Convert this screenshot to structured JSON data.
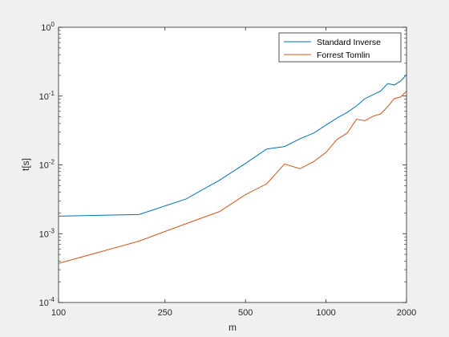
{
  "chart_data": {
    "type": "line",
    "xlabel": "m",
    "ylabel": "t[s]",
    "xscale": "log",
    "yscale": "log",
    "xlim": [
      100,
      2000
    ],
    "ylim": [
      0.0001,
      1
    ],
    "x_ticks": [
      100,
      250,
      500,
      1000,
      2000
    ],
    "x_tick_labels": [
      "100",
      "250",
      "500",
      "1000",
      "2000"
    ],
    "y_ticks": [
      0.0001,
      0.001,
      0.01,
      0.1,
      1
    ],
    "y_tick_labels": [
      {
        "base": "10",
        "exp": "-4"
      },
      {
        "base": "10",
        "exp": "-3"
      },
      {
        "base": "10",
        "exp": "-2"
      },
      {
        "base": "10",
        "exp": "-1"
      },
      {
        "base": "10",
        "exp": "0"
      }
    ],
    "grid": false,
    "legend_position": "top-right",
    "series": [
      {
        "name": "Standard Inverse",
        "color": "#0072BD",
        "x": [
          100,
          200,
          300,
          400,
          500,
          600,
          700,
          800,
          900,
          1000,
          1100,
          1200,
          1300,
          1400,
          1500,
          1600,
          1700,
          1800,
          1900,
          2000
        ],
        "y": [
          0.0018,
          0.0019,
          0.0032,
          0.006,
          0.0105,
          0.017,
          0.0185,
          0.024,
          0.029,
          0.038,
          0.048,
          0.058,
          0.072,
          0.092,
          0.105,
          0.118,
          0.152,
          0.145,
          0.165,
          0.205
        ]
      },
      {
        "name": "Forrest Tomlin",
        "color": "#D95319",
        "x": [
          100,
          200,
          300,
          400,
          500,
          600,
          700,
          800,
          900,
          1000,
          1100,
          1200,
          1300,
          1400,
          1500,
          1600,
          1700,
          1800,
          1900,
          2000
        ],
        "y": [
          0.00037,
          0.00078,
          0.0014,
          0.0021,
          0.0037,
          0.0053,
          0.0103,
          0.0088,
          0.0112,
          0.0152,
          0.0235,
          0.029,
          0.046,
          0.044,
          0.051,
          0.055,
          0.07,
          0.092,
          0.097,
          0.118
        ]
      }
    ]
  }
}
